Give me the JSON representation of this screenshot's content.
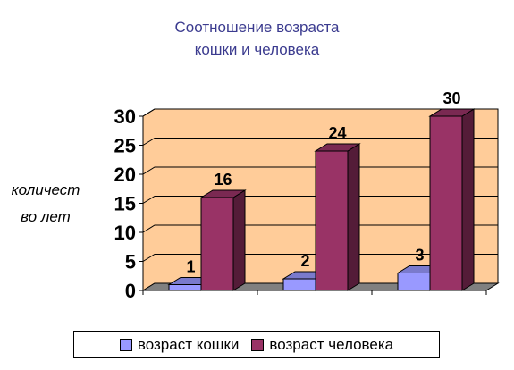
{
  "chart_data": {
    "type": "bar",
    "title_lines": [
      "Соотношение возраста",
      "кошки и человека"
    ],
    "ylabel_lines": [
      "количест",
      "во лет"
    ],
    "xlabel": "",
    "categories": [
      "",
      "",
      ""
    ],
    "ylim": [
      0,
      30
    ],
    "yticks": [
      "0",
      "5",
      "10",
      "15",
      "20",
      "25",
      "30"
    ],
    "grid": true,
    "legend_position": "bottom",
    "series": [
      {
        "name": "возраст кошки",
        "values": [
          1,
          2,
          3
        ],
        "labels": [
          "1",
          "2",
          "3"
        ],
        "color": "#9999ff"
      },
      {
        "name": "возраст человека",
        "values": [
          16,
          24,
          30
        ],
        "labels": [
          "16",
          "24",
          "30"
        ],
        "color": "#993366"
      }
    ],
    "wall_color": "#ffcc99",
    "floor_color": "#808080"
  }
}
